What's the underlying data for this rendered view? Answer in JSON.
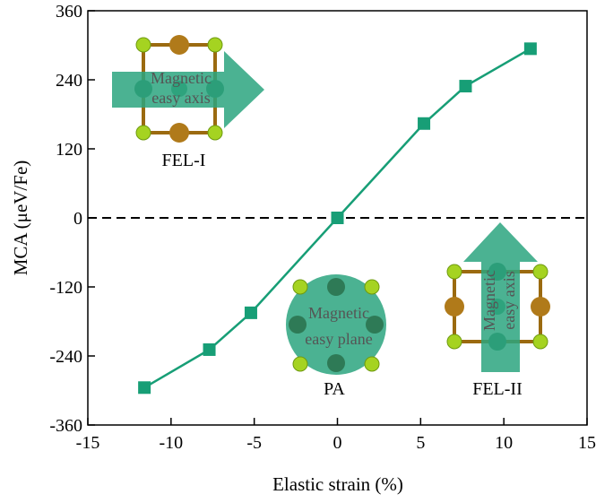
{
  "chart_data": {
    "type": "line",
    "x_label": "Elastic strain (%)",
    "y_label": "MCA (μeV/Fe)",
    "x": [
      -11.6,
      -7.7,
      -5.2,
      0,
      5.2,
      7.7,
      11.6
    ],
    "series": [
      {
        "color": "#179e76",
        "values": [
          -295,
          -229,
          -165,
          0,
          164,
          229,
          294
        ]
      }
    ],
    "xlim": [
      -15,
      15
    ],
    "xticks": [
      -15,
      -10,
      -5,
      0,
      5,
      10,
      15
    ],
    "ylim": [
      -360,
      360
    ],
    "yticks": [
      -360,
      -240,
      -120,
      0,
      120,
      240,
      360
    ],
    "reference_line": 0,
    "annotations": [
      "FEL-I",
      "PA",
      "FEL-II"
    ],
    "arrow_labels": [
      [
        "Magnetic",
        "easy axis"
      ],
      [
        "Magnetic",
        "easy plane"
      ],
      [
        "Magnetic",
        "easy axis"
      ]
    ]
  }
}
